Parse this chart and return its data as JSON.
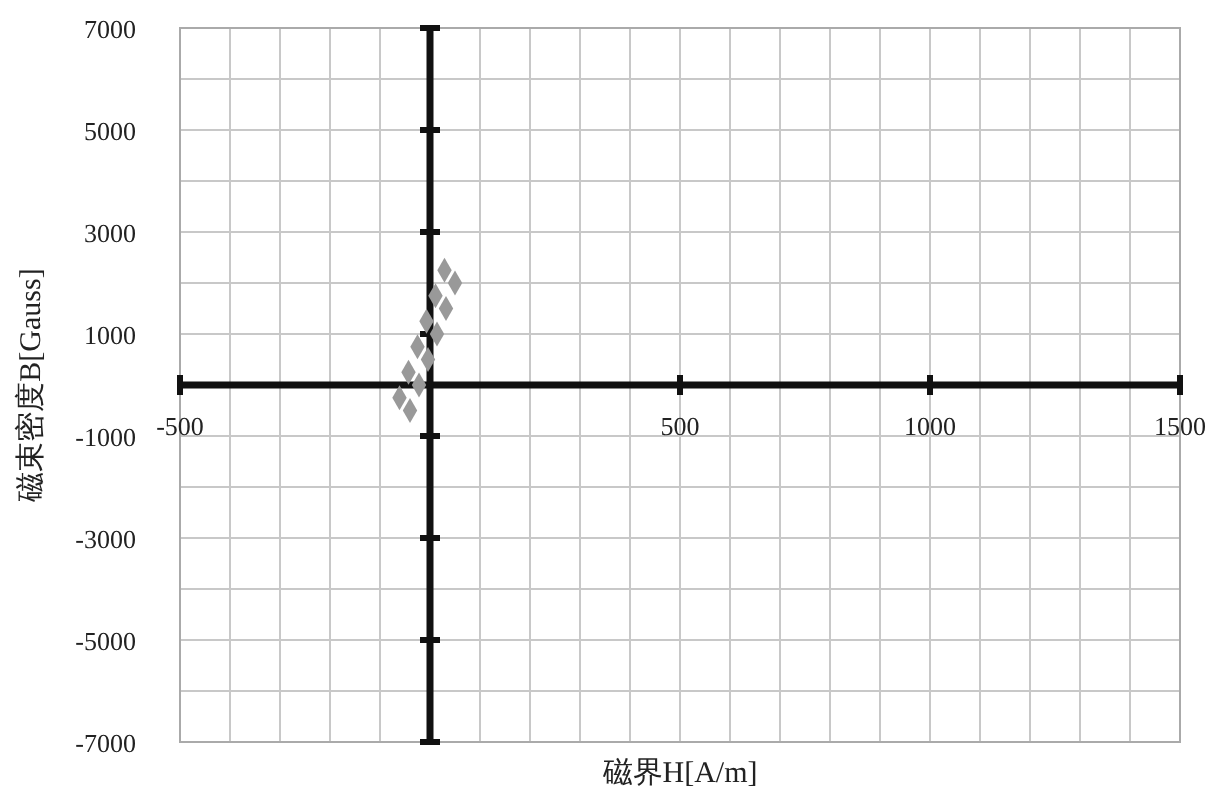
{
  "chart_data": {
    "type": "scatter",
    "xlabel": "磁界H[A/m]",
    "ylabel": "磁束密度B[Gauss]",
    "xlim": [
      -500,
      1500
    ],
    "ylim": [
      -7000,
      7000
    ],
    "xticks": [
      -500,
      {
        "value": -400,
        "label": null
      },
      {
        "value": -300,
        "label": null
      },
      {
        "value": -200,
        "label": null
      },
      {
        "value": -100,
        "label": null
      },
      {
        "value": 0,
        "label": null
      },
      {
        "value": 100,
        "label": null
      },
      {
        "value": 200,
        "label": null
      },
      {
        "value": 300,
        "label": null
      },
      {
        "value": 400,
        "label": null
      },
      500,
      {
        "value": 600,
        "label": null
      },
      {
        "value": 700,
        "label": null
      },
      {
        "value": 800,
        "label": null
      },
      {
        "value": 900,
        "label": null
      },
      1000,
      {
        "value": 1100,
        "label": null
      },
      {
        "value": 1200,
        "label": null
      },
      {
        "value": 1300,
        "label": null
      },
      {
        "value": 1400,
        "label": null
      },
      1500
    ],
    "yticks": [
      -7000,
      {
        "value": -6000,
        "label": null
      },
      -5000,
      {
        "value": -4000,
        "label": null
      },
      -3000,
      {
        "value": -2000,
        "label": null
      },
      -1000,
      {
        "value": 0,
        "label": null
      },
      1000,
      {
        "value": 2000,
        "label": null
      },
      3000,
      {
        "value": 4000,
        "label": null
      },
      5000,
      {
        "value": 6000,
        "label": null
      },
      7000
    ],
    "grid": true,
    "marker": "diamond",
    "series": [
      {
        "color": "#999999",
        "x": [
          -40,
          -61,
          -22,
          -43,
          -4,
          -25,
          14,
          -7,
          32,
          11,
          50,
          29
        ],
        "values": [
          -500,
          -250,
          0,
          250,
          500,
          750,
          1000,
          1250,
          1500,
          1750,
          2000,
          2250
        ]
      }
    ]
  }
}
